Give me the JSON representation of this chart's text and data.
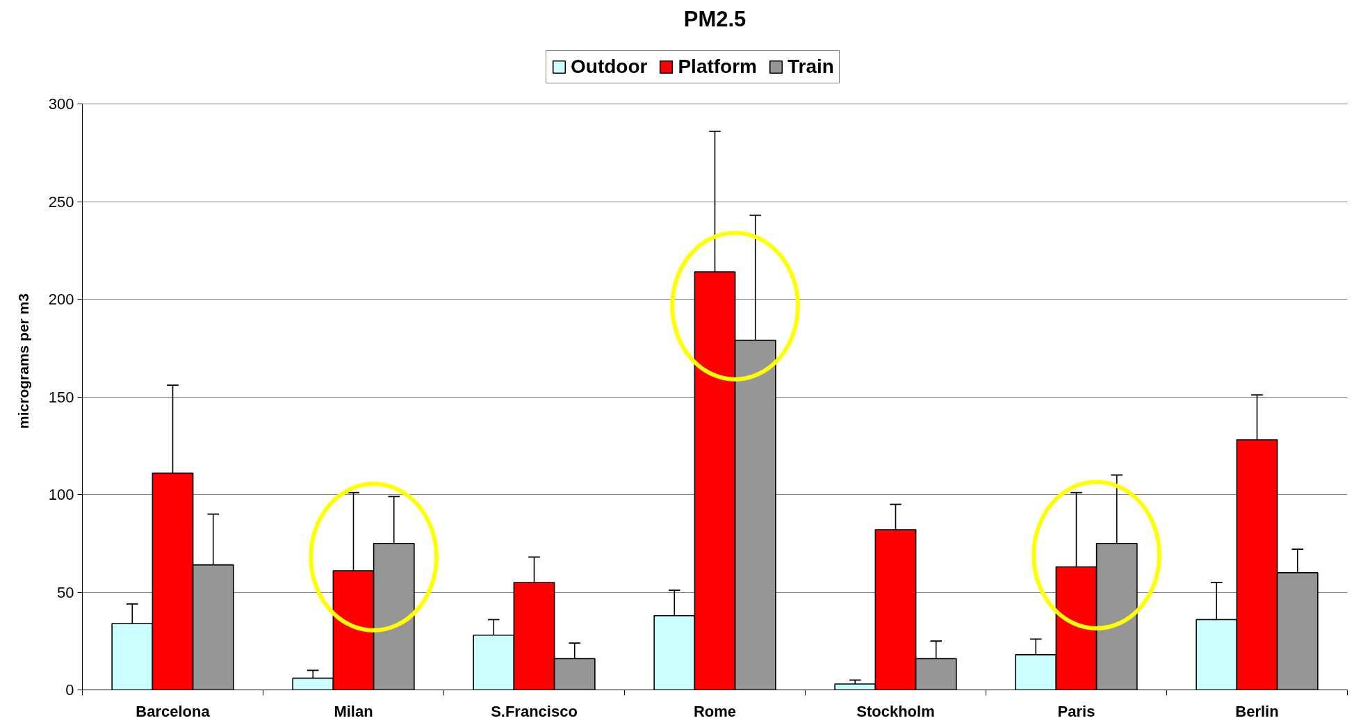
{
  "chart_data": {
    "type": "bar",
    "title": "PM2.5",
    "ylabel": "micrograms per m3",
    "categories": [
      "Barcelona",
      "Milan",
      "S.Francisco",
      "Rome",
      "Stockholm",
      "Paris",
      "Berlin"
    ],
    "series": [
      {
        "name": "Outdoor",
        "color": "#ccffff",
        "values": [
          34,
          6,
          28,
          38,
          3,
          18,
          36
        ],
        "errors": [
          [
            34,
            44
          ],
          [
            6,
            10
          ],
          [
            28,
            36
          ],
          [
            38,
            51
          ],
          [
            3,
            5
          ],
          [
            18,
            26
          ],
          [
            36,
            55
          ]
        ]
      },
      {
        "name": "Platform",
        "color": "#ff0000",
        "values": [
          111,
          61,
          55,
          214,
          82,
          63,
          128
        ],
        "errors": [
          [
            111,
            156
          ],
          [
            61,
            101
          ],
          [
            55,
            68
          ],
          [
            214,
            286
          ],
          [
            82,
            95
          ],
          [
            63,
            101
          ],
          [
            128,
            151
          ]
        ]
      },
      {
        "name": "Train",
        "color": "#969696",
        "values": [
          64,
          75,
          16,
          179,
          16,
          75,
          60
        ],
        "errors": [
          [
            64,
            90
          ],
          [
            75,
            99
          ],
          [
            16,
            24
          ],
          [
            179,
            243
          ],
          [
            16,
            25
          ],
          [
            75,
            110
          ],
          [
            60,
            72
          ]
        ]
      }
    ],
    "ylim": [
      0,
      300
    ],
    "yticks": [
      0,
      50,
      100,
      150,
      200,
      250,
      300
    ],
    "grid": "y",
    "legend": "top",
    "annotations": [
      {
        "x": "Milan"
      },
      {
        "x": "Rome"
      },
      {
        "x": "Paris"
      }
    ]
  }
}
